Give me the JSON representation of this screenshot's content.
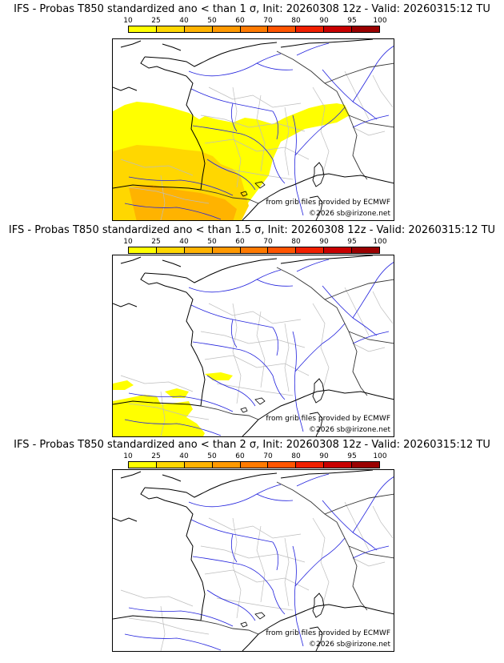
{
  "legend": {
    "ticks": [
      "10",
      "25",
      "40",
      "50",
      "60",
      "70",
      "80",
      "90",
      "95",
      "100"
    ],
    "colors": [
      "#ffff00",
      "#ffd700",
      "#ffb300",
      "#ff9900",
      "#ff7a00",
      "#ff5500",
      "#f02000",
      "#c80000",
      "#9a0000",
      "#600000"
    ]
  },
  "panels": [
    {
      "title": "IFS - Probas T850  standardized ano < than 1 σ, Init: 20260308 12z - Valid: 20260315:12 TU",
      "source_credit": "from grib files provided by ECMWF",
      "copyright": "©2026 sb@irizone.net",
      "probability_zones": [
        {
          "region": "Atlantic coast / SW France",
          "probability_pct": 10
        },
        {
          "region": "Central France belt",
          "probability_pct": 10
        },
        {
          "region": "Aquitaine / Bay of Biscay",
          "probability_pct": 25
        },
        {
          "region": "Northern Spain",
          "probability_pct": 40
        }
      ]
    },
    {
      "title": "IFS - Probas T850  standardized ano < than 1.5 σ, Init: 20260308 12z - Valid: 20260315:12 TU",
      "source_credit": "from grib files provided by ECMWF",
      "copyright": "©2026 sb@irizone.net",
      "probability_zones": [
        {
          "region": "Bay of Biscay / N Spain",
          "probability_pct": 10
        }
      ]
    },
    {
      "title": "IFS - Probas T850  standardized ano < than 2 σ, Init: 20260308 12z - Valid: 20260315:12 TU",
      "source_credit": "from grib files provided by ECMWF",
      "copyright": "©2026 sb@irizone.net",
      "probability_zones": []
    }
  ]
}
